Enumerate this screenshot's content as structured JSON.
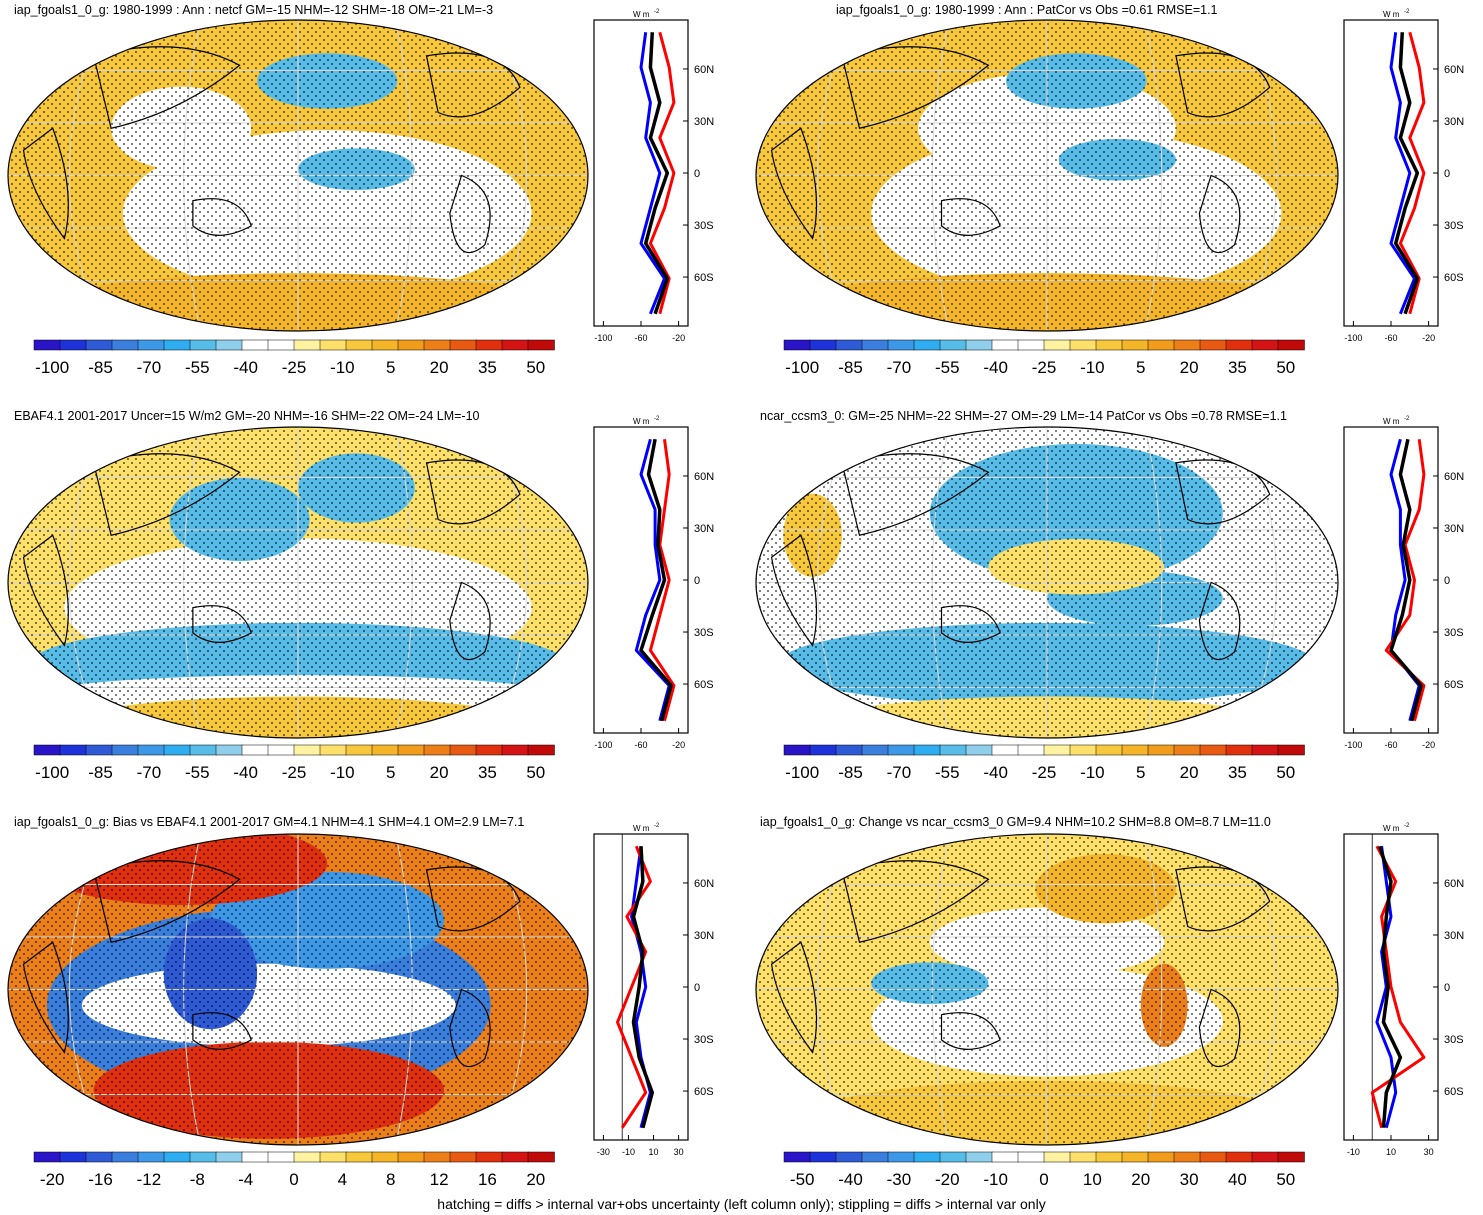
{
  "footnote": "hatching = diffs > internal var+obs uncertainty (left column only); stippling = diffs > internal var only",
  "profile_unit": "W m",
  "profile_unit_exp": "-2",
  "lat_ticks": [
    "60N",
    "30N",
    "0",
    "30S",
    "60S"
  ],
  "colors": {
    "scale_full": [
      "#2a14c8",
      "#1d33d9",
      "#2f5ad6",
      "#3a7fdd",
      "#3d99e8",
      "#2eaef0",
      "#57bde8",
      "#8fcfec",
      "#ffffff",
      "#ffffff",
      "#fff2a0",
      "#fde06a",
      "#f8c83c",
      "#f5b528",
      "#f19c1a",
      "#ed7f18",
      "#e85a12",
      "#e0300e",
      "#d41414",
      "#c00a0a"
    ],
    "sample": {
      "blue": "#0000ff",
      "red": "#ff0000",
      "black": "#000000"
    }
  },
  "panels": [
    {
      "id": "p1",
      "title": "iap_fgoals1_0_g: 1980-1999 : Ann : netcf GM=-15 NHM=-12 SHM=-18 OM=-21 LM=-3",
      "profile_ticks": [
        "-100",
        "-60",
        "-20"
      ],
      "colorbar_labels": [
        "-100",
        "-85",
        "-70",
        "-55",
        "-40",
        "-25",
        "-10",
        "5",
        "20",
        "35",
        "50"
      ],
      "hatched": true
    },
    {
      "id": "p2",
      "title": "iap_fgoals1_0_g: 1980-1999 : Ann : PatCor vs Obs =0.61 RMSE=1.1",
      "profile_ticks": [
        "-100",
        "-60",
        "-20"
      ],
      "colorbar_labels": [
        "-100",
        "-85",
        "-70",
        "-55",
        "-40",
        "-25",
        "-10",
        "5",
        "20",
        "35",
        "50"
      ],
      "hatched": false
    },
    {
      "id": "p3",
      "title": "EBAF4.1 2001-2017 Uncer=15 W/m2 GM=-20 NHM=-16 SHM=-22 OM=-24 LM=-10",
      "profile_ticks": [
        "-100",
        "-60",
        "-20"
      ],
      "colorbar_labels": [
        "-100",
        "-85",
        "-70",
        "-55",
        "-40",
        "-25",
        "-10",
        "5",
        "20",
        "35",
        "50"
      ],
      "hatched": true
    },
    {
      "id": "p4",
      "title": "ncar_ccsm3_0: GM=-25 NHM=-22 SHM=-27 OM=-29 LM=-14 PatCor vs Obs =0.78 RMSE=1.1",
      "profile_ticks": [
        "-100",
        "-60",
        "-20"
      ],
      "colorbar_labels": [
        "-100",
        "-85",
        "-70",
        "-55",
        "-40",
        "-25",
        "-10",
        "5",
        "20",
        "35",
        "50"
      ],
      "hatched": false
    },
    {
      "id": "p5",
      "title": "iap_fgoals1_0_g: Bias vs EBAF4.1 2001-2017 GM=4.1 NHM=4.1 SHM=4.1 OM=2.9 LM=7.1",
      "profile_ticks": [
        "-30",
        "-10",
        "10",
        "30"
      ],
      "colorbar_labels": [
        "-20",
        "-16",
        "-12",
        "-8",
        "-4",
        "0",
        "4",
        "8",
        "12",
        "16",
        "20"
      ],
      "hatched": true
    },
    {
      "id": "p6",
      "title": "iap_fgoals1_0_g: Change vs ncar_ccsm3_0 GM=9.4 NHM=10.2 SHM=8.8 OM=8.7 LM=11.0",
      "profile_ticks": [
        "-10",
        "10",
        "30"
      ],
      "colorbar_labels": [
        "-50",
        "-40",
        "-30",
        "-20",
        "-10",
        "0",
        "10",
        "20",
        "30",
        "40",
        "50"
      ],
      "hatched": false
    }
  ]
}
